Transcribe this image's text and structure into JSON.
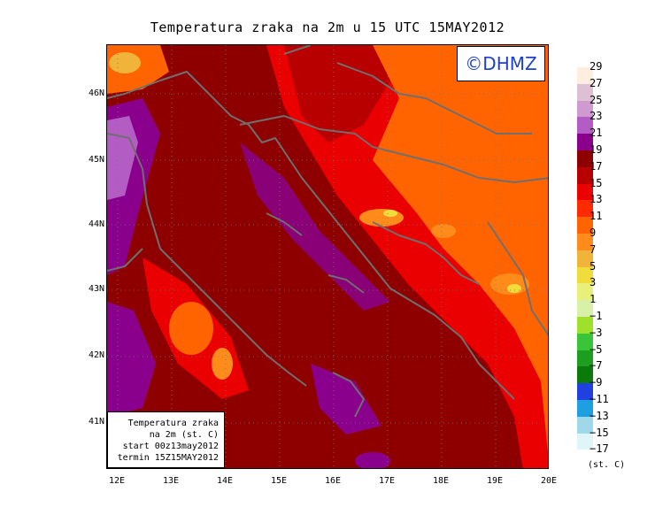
{
  "title": "Temperatura zraka na 2m u 15 UTC 15MAY2012",
  "logo": "©DHMZ",
  "info": {
    "line1": "Temperatura zraka",
    "line2": "na 2m (st. C)",
    "line3": "start 00z13may2012",
    "line4": "termin 15Z15MAY2012"
  },
  "map_data": {
    "x_axis": {
      "labels": [
        "12E",
        "13E",
        "14E",
        "15E",
        "16E",
        "17E",
        "18E",
        "19E",
        "20E"
      ],
      "range": [
        11.8,
        20.0
      ]
    },
    "y_axis": {
      "labels": [
        "41N",
        "42N",
        "43N",
        "44N",
        "45N",
        "46N"
      ],
      "range": [
        40.3,
        46.8
      ]
    },
    "grid": "dotted"
  },
  "legend": {
    "units": "(st. C)",
    "labels": [
      "29",
      "27",
      "25",
      "23",
      "21",
      "19",
      "17",
      "15",
      "13",
      "11",
      "9",
      "7",
      "5",
      "3",
      "1",
      "−1",
      "−3",
      "−5",
      "−7",
      "−9",
      "−11",
      "−13",
      "−15",
      "−17"
    ],
    "colors": [
      "#fdeee0",
      "#dcc0d4",
      "#cf9ad0",
      "#b35cc4",
      "#8a008c",
      "#8e0000",
      "#b80000",
      "#ea0000",
      "#ff2a00",
      "#ff6400",
      "#ff8c1a",
      "#f0b43a",
      "#f0dc3a",
      "#e8f07a",
      "#d8f0a8",
      "#9ee02a",
      "#3ac43a",
      "#1e9e1e",
      "#0a7a0a",
      "#2040e0",
      "#1ea0e0",
      "#9fd8e8",
      "#dff5f8"
    ]
  }
}
